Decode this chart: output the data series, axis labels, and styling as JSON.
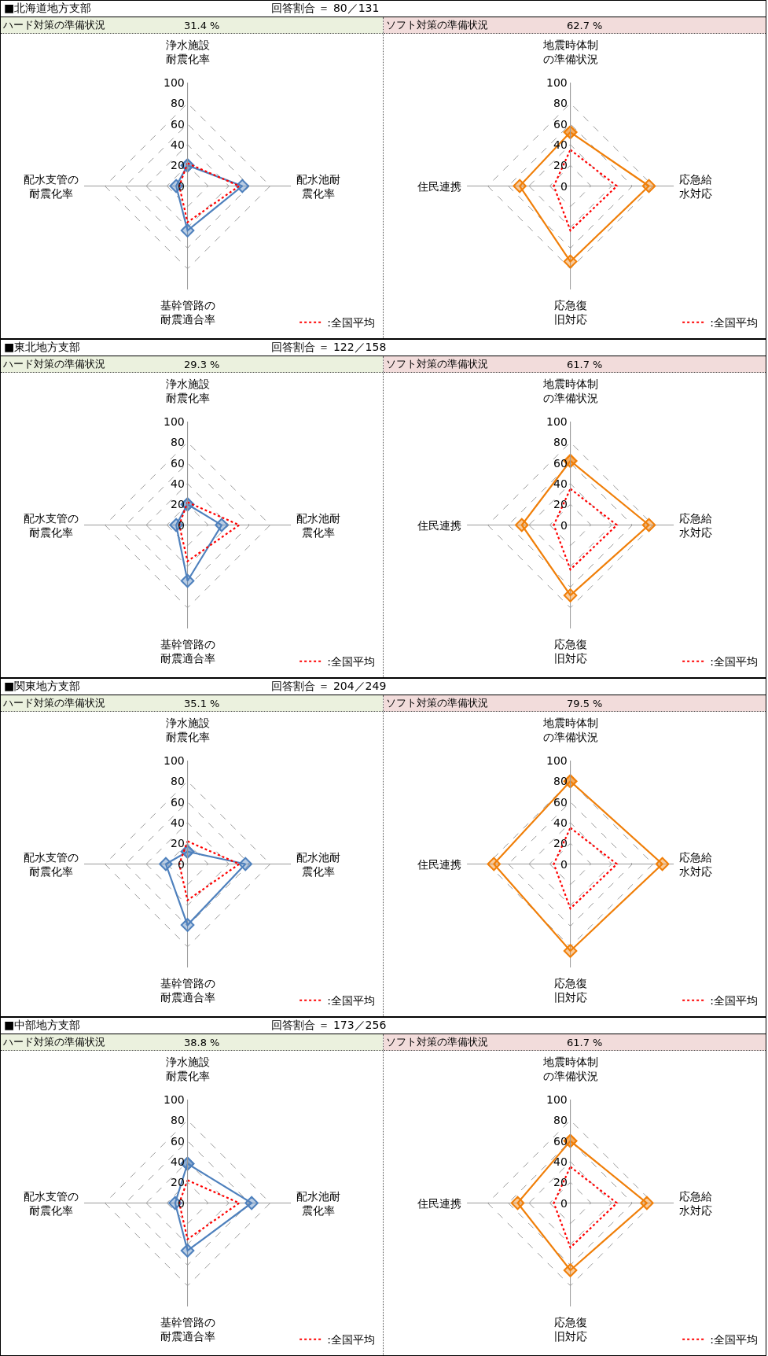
{
  "chart_data": [
    {
      "type": "other",
      "title": "■北海道地方支部",
      "annotations": [
        "回答割合 ＝ 80／131"
      ]
    },
    {
      "type": "radar",
      "title": "ハード対策の準備状況",
      "subtitle": "31.4 %",
      "categories": [
        "浄水施設耐震化率",
        "配水池耐震化率",
        "基幹管路の耐震適合率",
        "配水支管の耐震化率"
      ],
      "ylim": [
        0,
        100
      ],
      "yticks": [
        0,
        20,
        40,
        60,
        80,
        100
      ],
      "grid": true,
      "legend": "bottom right",
      "series": [
        {
          "color": "#4f81bd",
          "marker": "diamond",
          "line_style": "solid",
          "values": [
            20,
            53,
            43,
            11
          ]
        },
        {
          "name": ":全国平均",
          "color": "#ff0000",
          "line_style": "dotted",
          "values": [
            22,
            50,
            35,
            8
          ]
        }
      ]
    },
    {
      "type": "radar",
      "title": "ソフト対策の準備状況",
      "subtitle": "62.7 %",
      "categories": [
        "地震時体制の準備状況",
        "応急給水対応",
        "応急復旧対応",
        "住民連携"
      ],
      "ylim": [
        0,
        100
      ],
      "yticks": [
        0,
        20,
        40,
        60,
        80,
        100
      ],
      "grid": true,
      "legend": "bottom right",
      "series": [
        {
          "color": "#f07f09",
          "marker": "diamond",
          "line_style": "solid",
          "values": [
            52,
            76,
            73,
            49
          ]
        },
        {
          "name": ":全国平均",
          "color": "#ff0000",
          "line_style": "dotted",
          "values": [
            35,
            45,
            43,
            16
          ]
        }
      ]
    },
    {
      "type": "other",
      "title": "■東北地方支部",
      "annotations": [
        "回答割合 ＝ 122／158"
      ]
    },
    {
      "type": "radar",
      "title": "ハード対策の準備状況",
      "subtitle": "29.3 %",
      "categories": [
        "浄水施設耐震化率",
        "配水池耐震化率",
        "基幹管路の耐震適合率",
        "配水支管の耐震化率"
      ],
      "ylim": [
        0,
        100
      ],
      "yticks": [
        0,
        20,
        40,
        60,
        80,
        100
      ],
      "grid": true,
      "legend": "bottom right",
      "series": [
        {
          "color": "#4f81bd",
          "marker": "diamond",
          "line_style": "solid",
          "values": [
            20,
            33,
            54,
            11
          ]
        },
        {
          "name": ":全国平均",
          "color": "#ff0000",
          "line_style": "dotted",
          "values": [
            22,
            50,
            35,
            8
          ]
        }
      ]
    },
    {
      "type": "radar",
      "title": "ソフト対策の準備状況",
      "subtitle": "61.7 %",
      "categories": [
        "地震時体制の準備状況",
        "応急給水対応",
        "応急復旧対応",
        "住民連携"
      ],
      "ylim": [
        0,
        100
      ],
      "yticks": [
        0,
        20,
        40,
        60,
        80,
        100
      ],
      "grid": true,
      "legend": "bottom right",
      "series": [
        {
          "color": "#f07f09",
          "marker": "diamond",
          "line_style": "solid",
          "values": [
            62,
            76,
            68,
            47
          ]
        },
        {
          "name": ":全国平均",
          "color": "#ff0000",
          "line_style": "dotted",
          "values": [
            35,
            45,
            43,
            16
          ]
        }
      ]
    },
    {
      "type": "other",
      "title": "■関東地方支部",
      "annotations": [
        "回答割合 ＝ 204／249"
      ]
    },
    {
      "type": "radar",
      "title": "ハード対策の準備状況",
      "subtitle": "35.1 %",
      "categories": [
        "浄水施設耐震化率",
        "配水池耐震化率",
        "基幹管路の耐震適合率",
        "配水支管の耐震化率"
      ],
      "ylim": [
        0,
        100
      ],
      "yticks": [
        0,
        20,
        40,
        60,
        80,
        100
      ],
      "grid": true,
      "legend": "bottom right",
      "series": [
        {
          "color": "#4f81bd",
          "marker": "diamond",
          "line_style": "solid",
          "values": [
            12,
            56,
            59,
            21
          ]
        },
        {
          "name": ":全国平均",
          "color": "#ff0000",
          "line_style": "dotted",
          "values": [
            22,
            50,
            35,
            8
          ]
        }
      ]
    },
    {
      "type": "radar",
      "title": "ソフト対策の準備状況",
      "subtitle": "79.5 %",
      "categories": [
        "地震時体制の準備状況",
        "応急給水対応",
        "応急復旧対応",
        "住民連携"
      ],
      "ylim": [
        0,
        100
      ],
      "yticks": [
        0,
        20,
        40,
        60,
        80,
        100
      ],
      "grid": true,
      "legend": "bottom right",
      "series": [
        {
          "color": "#f07f09",
          "marker": "diamond",
          "line_style": "solid",
          "values": [
            80,
            89,
            84,
            74
          ]
        },
        {
          "name": ":全国平均",
          "color": "#ff0000",
          "line_style": "dotted",
          "values": [
            35,
            45,
            43,
            16
          ]
        }
      ]
    },
    {
      "type": "other",
      "title": "■中部地方支部",
      "annotations": [
        "回答割合 ＝ 173／256"
      ]
    },
    {
      "type": "radar",
      "title": "ハード対策の準備状況",
      "subtitle": "38.8 %",
      "categories": [
        "浄水施設耐震化率",
        "配水池耐震化率",
        "基幹管路の耐震適合率",
        "配水支管の耐震化率"
      ],
      "ylim": [
        0,
        100
      ],
      "yticks": [
        0,
        20,
        40,
        60,
        80,
        100
      ],
      "grid": true,
      "legend": "bottom right",
      "series": [
        {
          "color": "#4f81bd",
          "marker": "diamond",
          "line_style": "solid",
          "values": [
            38,
            62,
            46,
            12
          ]
        },
        {
          "name": ":全国平均",
          "color": "#ff0000",
          "line_style": "dotted",
          "values": [
            22,
            50,
            35,
            8
          ]
        }
      ]
    },
    {
      "type": "radar",
      "title": "ソフト対策の準備状況",
      "subtitle": "61.7 %",
      "categories": [
        "地震時体制の準備状況",
        "応急給水対応",
        "応急復旧対応",
        "住民連携"
      ],
      "ylim": [
        0,
        100
      ],
      "yticks": [
        0,
        20,
        40,
        60,
        80,
        100
      ],
      "grid": true,
      "legend": "bottom right",
      "series": [
        {
          "color": "#f07f09",
          "marker": "diamond",
          "line_style": "solid",
          "values": [
            60,
            74,
            65,
            51
          ]
        },
        {
          "name": ":全国平均",
          "color": "#ff0000",
          "line_style": "dotted",
          "values": [
            35,
            45,
            43,
            16
          ]
        }
      ]
    }
  ]
}
